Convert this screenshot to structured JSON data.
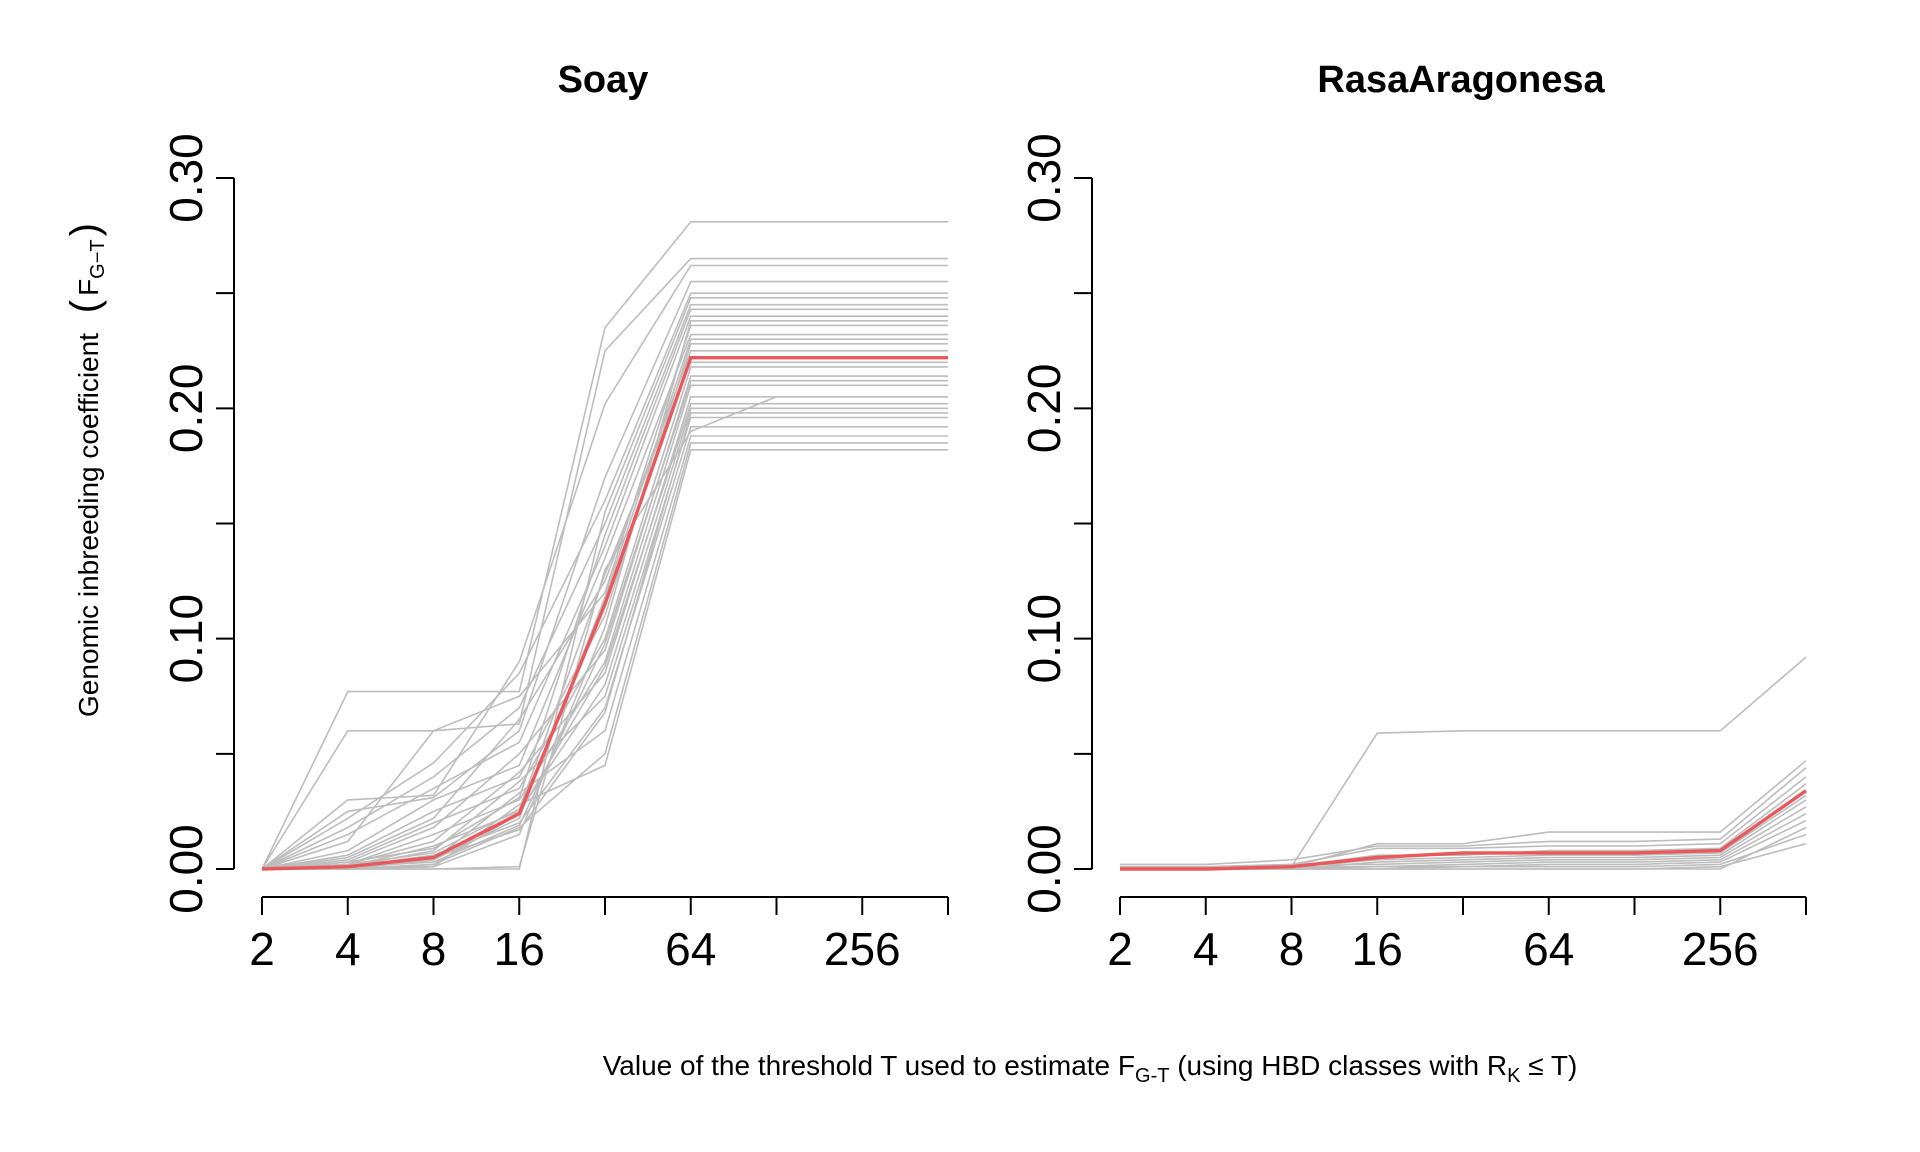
{
  "chart_data": [
    {
      "type": "line",
      "title": "Soay",
      "x": [
        2,
        4,
        8,
        16,
        32,
        64,
        128,
        256,
        512
      ],
      "x_tick_labels": [
        "2",
        "4",
        "8",
        "16",
        "",
        "64",
        "",
        "256",
        ""
      ],
      "x_scale": "log2",
      "ylim": [
        0,
        0.3
      ],
      "y_ticks": [
        0,
        0.05,
        0.1,
        0.15,
        0.2,
        0.25,
        0.3
      ],
      "y_tick_labels": [
        "0.00",
        "",
        "0.10",
        "",
        "0.20",
        "",
        "0.30"
      ],
      "ylabel": "Genomic inbreeding coefficient",
      "ylabel_sub": "G−T",
      "series": [
        {
          "values": [
            0,
            0.001,
            0.005,
            0.024,
            0.115,
            0.222,
            0.222,
            0.222,
            0.222
          ],
          "color": "#e8585c"
        },
        {
          "values": [
            0,
            0.077,
            0.077,
            0.077,
            0.235,
            0.281,
            0.281,
            0.281,
            0.281
          ],
          "color": "#bdbdbd"
        },
        {
          "values": [
            0,
            0.06,
            0.06,
            0.063,
            0.225,
            0.265,
            0.265,
            0.265,
            0.265
          ],
          "color": "#bdbdbd"
        },
        {
          "values": [
            0,
            0.03,
            0.032,
            0.09,
            0.202,
            0.262,
            0.262,
            0.262,
            0.262
          ],
          "color": "#bdbdbd"
        },
        {
          "values": [
            0,
            0.025,
            0.031,
            0.06,
            0.17,
            0.255,
            0.255,
            0.255,
            0.255
          ],
          "color": "#bdbdbd"
        },
        {
          "values": [
            0,
            0.022,
            0.046,
            0.085,
            0.16,
            0.25,
            0.25,
            0.25,
            0.25
          ],
          "color": "#bdbdbd"
        },
        {
          "values": [
            0,
            0.018,
            0.04,
            0.07,
            0.15,
            0.245,
            0.245,
            0.245,
            0.245
          ],
          "color": "#bdbdbd"
        },
        {
          "values": [
            0,
            0.015,
            0.035,
            0.055,
            0.14,
            0.24,
            0.24,
            0.24,
            0.24
          ],
          "color": "#bdbdbd"
        },
        {
          "values": [
            0,
            0.012,
            0.06,
            0.075,
            0.12,
            0.236,
            0.236,
            0.236,
            0.236
          ],
          "color": "#bdbdbd"
        },
        {
          "values": [
            0,
            0.008,
            0.03,
            0.045,
            0.135,
            0.232,
            0.232,
            0.232,
            0.232
          ],
          "color": "#bdbdbd"
        },
        {
          "values": [
            0,
            0.006,
            0.025,
            0.04,
            0.11,
            0.228,
            0.228,
            0.228,
            0.228
          ],
          "color": "#bdbdbd"
        },
        {
          "values": [
            0,
            0.005,
            0.022,
            0.065,
            0.125,
            0.225,
            0.225,
            0.225,
            0.225
          ],
          "color": "#bdbdbd"
        },
        {
          "values": [
            0,
            0.004,
            0.02,
            0.035,
            0.1,
            0.218,
            0.218,
            0.218,
            0.218
          ],
          "color": "#bdbdbd"
        },
        {
          "values": [
            0,
            0.003,
            0.018,
            0.05,
            0.095,
            0.214,
            0.214,
            0.214,
            0.214
          ],
          "color": "#bdbdbd"
        },
        {
          "values": [
            0,
            0.002,
            0.015,
            0.03,
            0.09,
            0.21,
            0.21,
            0.21,
            0.21
          ],
          "color": "#bdbdbd"
        },
        {
          "values": [
            0,
            0.002,
            0.012,
            0.042,
            0.085,
            0.205,
            0.205,
            0.205,
            0.205
          ],
          "color": "#bdbdbd"
        },
        {
          "values": [
            0,
            0.001,
            0.01,
            0.025,
            0.08,
            0.2,
            0.2,
            0.2,
            0.2
          ],
          "color": "#bdbdbd"
        },
        {
          "values": [
            0,
            0.001,
            0.008,
            0.038,
            0.075,
            0.196,
            0.196,
            0.196,
            0.196
          ],
          "color": "#bdbdbd"
        },
        {
          "values": [
            0,
            0.001,
            0.006,
            0.02,
            0.07,
            0.192,
            0.192,
            0.192,
            0.192
          ],
          "color": "#bdbdbd"
        },
        {
          "values": [
            0,
            0.0,
            0.004,
            0.033,
            0.06,
            0.188,
            0.188,
            0.188,
            0.188
          ],
          "color": "#bdbdbd"
        },
        {
          "values": [
            0,
            0.0,
            0.002,
            0.018,
            0.05,
            0.185,
            0.185,
            0.185,
            0.185
          ],
          "color": "#bdbdbd"
        },
        {
          "values": [
            0,
            0.0,
            0.001,
            0.028,
            0.045,
            0.182,
            0.182,
            0.182,
            0.182
          ],
          "color": "#bdbdbd"
        },
        {
          "values": [
            0,
            0.0,
            0.0,
            0.001,
            0.13,
            0.19,
            0.205,
            0.205,
            0.205
          ],
          "color": "#bdbdbd"
        },
        {
          "values": [
            0,
            0.0,
            0.0,
            0.0,
            0.155,
            0.248,
            0.248,
            0.248,
            0.248
          ],
          "color": "#bdbdbd"
        },
        {
          "values": [
            0,
            0.0,
            0.001,
            0.015,
            0.105,
            0.238,
            0.238,
            0.238,
            0.238
          ],
          "color": "#bdbdbd"
        },
        {
          "values": [
            0,
            0.001,
            0.004,
            0.022,
            0.118,
            0.23,
            0.23,
            0.23,
            0.23
          ],
          "color": "#bdbdbd"
        },
        {
          "values": [
            0,
            0.002,
            0.007,
            0.026,
            0.128,
            0.22,
            0.22,
            0.22,
            0.22
          ],
          "color": "#bdbdbd"
        },
        {
          "values": [
            0,
            0.001,
            0.003,
            0.019,
            0.098,
            0.212,
            0.212,
            0.212,
            0.212
          ],
          "color": "#bdbdbd"
        },
        {
          "values": [
            0,
            0.0,
            0.002,
            0.024,
            0.088,
            0.202,
            0.202,
            0.202,
            0.202
          ],
          "color": "#bdbdbd"
        },
        {
          "values": [
            0,
            0.003,
            0.009,
            0.031,
            0.145,
            0.243,
            0.243,
            0.243,
            0.243
          ],
          "color": "#bdbdbd"
        },
        {
          "values": [
            0,
            0.001,
            0.005,
            0.017,
            0.068,
            0.198,
            0.198,
            0.198,
            0.198
          ],
          "color": "#bdbdbd"
        }
      ]
    },
    {
      "type": "line",
      "title": "RasaAragonesa",
      "x": [
        2,
        4,
        8,
        16,
        32,
        64,
        128,
        256,
        512
      ],
      "x_tick_labels": [
        "2",
        "4",
        "8",
        "16",
        "",
        "64",
        "",
        "256",
        ""
      ],
      "x_scale": "log2",
      "ylim": [
        0,
        0.3
      ],
      "y_ticks": [
        0,
        0.05,
        0.1,
        0.15,
        0.2,
        0.25,
        0.3
      ],
      "y_tick_labels": [
        "0.00",
        "",
        "0.10",
        "",
        "0.20",
        "",
        "0.30"
      ],
      "series": [
        {
          "values": [
            0,
            0,
            0.001,
            0.005,
            0.007,
            0.007,
            0.007,
            0.008,
            0.034
          ],
          "color": "#e8585c"
        },
        {
          "values": [
            0,
            0,
            0.001,
            0.059,
            0.06,
            0.06,
            0.06,
            0.06,
            0.092
          ],
          "color": "#bdbdbd"
        },
        {
          "values": [
            0,
            0,
            0.001,
            0.011,
            0.011,
            0.016,
            0.016,
            0.016,
            0.047
          ],
          "color": "#bdbdbd"
        },
        {
          "values": [
            0.002,
            0.002,
            0.004,
            0.01,
            0.01,
            0.012,
            0.012,
            0.013,
            0.044
          ],
          "color": "#bdbdbd"
        },
        {
          "values": [
            0,
            0,
            0.002,
            0.009,
            0.009,
            0.01,
            0.01,
            0.011,
            0.04
          ],
          "color": "#bdbdbd"
        },
        {
          "values": [
            0,
            0,
            0.001,
            0.006,
            0.006,
            0.008,
            0.008,
            0.009,
            0.037
          ],
          "color": "#bdbdbd"
        },
        {
          "values": [
            0,
            0,
            0.001,
            0.004,
            0.005,
            0.006,
            0.006,
            0.007,
            0.032
          ],
          "color": "#bdbdbd"
        },
        {
          "values": [
            0,
            0,
            0.0,
            0.003,
            0.004,
            0.005,
            0.005,
            0.006,
            0.03
          ],
          "color": "#bdbdbd"
        },
        {
          "values": [
            0.001,
            0.001,
            0.002,
            0.002,
            0.003,
            0.004,
            0.004,
            0.005,
            0.027
          ],
          "color": "#bdbdbd"
        },
        {
          "values": [
            0,
            0,
            0.0,
            0.001,
            0.002,
            0.003,
            0.003,
            0.004,
            0.024
          ],
          "color": "#bdbdbd"
        },
        {
          "values": [
            0,
            0,
            0.001,
            0.001,
            0.001,
            0.002,
            0.002,
            0.003,
            0.021
          ],
          "color": "#bdbdbd"
        },
        {
          "values": [
            0,
            0,
            0.0,
            0.0,
            0.001,
            0.001,
            0.001,
            0.002,
            0.015
          ],
          "color": "#bdbdbd"
        },
        {
          "values": [
            0,
            0,
            0.0,
            0.0,
            0.0,
            0.0,
            0.0,
            0.001,
            0.011
          ],
          "color": "#bdbdbd"
        },
        {
          "values": [
            0,
            0,
            0.0,
            0.0,
            0.0,
            0.0,
            0.0,
            0.0,
            0.018
          ],
          "color": "#bdbdbd"
        }
      ]
    }
  ],
  "shared": {
    "ylabel_main": "Genomic inbreeding coefficient",
    "ylabel_var": "F",
    "ylabel_var_sub": "G−T",
    "xlabel_pre": "Value of the threshold T used to estimate F",
    "xlabel_sub1": "G-T",
    "xlabel_mid": " (using HBD classes with R",
    "xlabel_sub2": "K",
    "xlabel_post": " ≤  T)"
  }
}
